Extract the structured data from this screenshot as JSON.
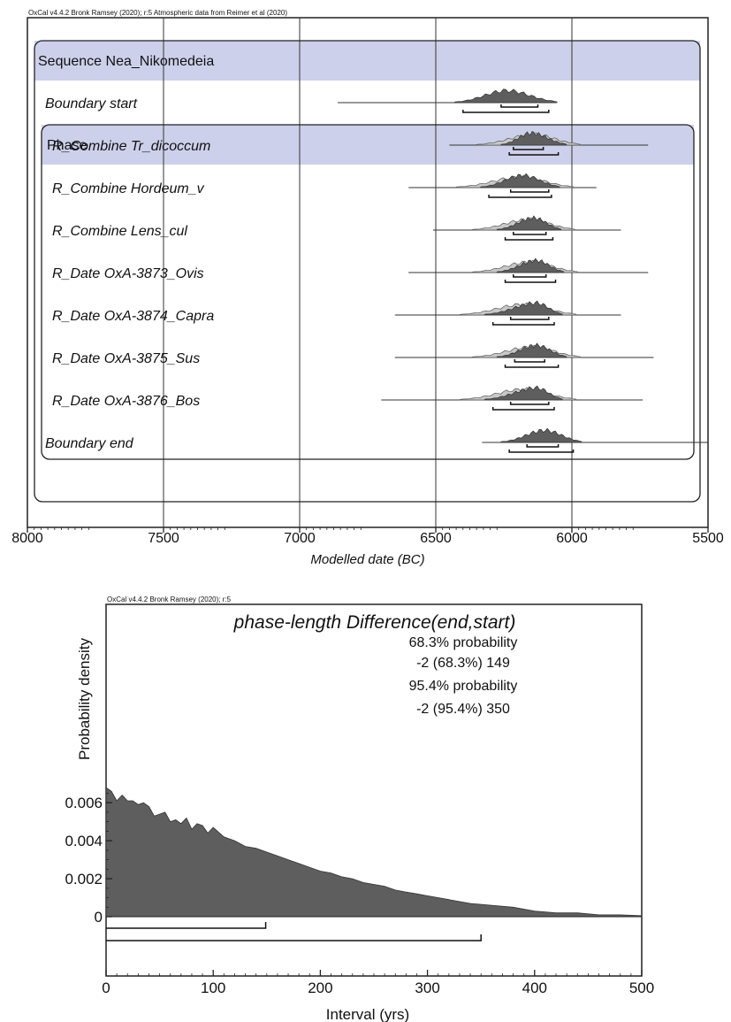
{
  "chart_data": [
    {
      "type": "area",
      "subtitle": "OxCal v4.4.2 Bronk Ramsey (2020); r:5 Atmospheric data from Reimer et al (2020)",
      "xlabel": "Modelled date (BC)",
      "xlim": [
        8000,
        5500
      ],
      "x_ticks": [
        "8000",
        "7500",
        "7000",
        "6500",
        "6000",
        "5500"
      ],
      "sequence_label": "Sequence Nea_Nikomedeia",
      "phase_label": "Phase",
      "rows": [
        {
          "label": "Boundary start",
          "in_phase": false,
          "prior": false,
          "span": [
            6860,
            6060
          ],
          "peak": 6240,
          "r68": [
            6260,
            6125
          ],
          "r95": [
            6400,
            6085
          ]
        },
        {
          "label": "R_Combine Tr_dicoccum",
          "in_phase": true,
          "prior": true,
          "span": [
            6450,
            5720
          ],
          "peak": 6150,
          "r68": [
            6215,
            6105
          ],
          "r95": [
            6230,
            6050
          ]
        },
        {
          "label": "R_Combine Hordeum_v",
          "in_phase": true,
          "prior": true,
          "span": [
            6600,
            5910
          ],
          "peak": 6180,
          "r68": [
            6225,
            6085
          ],
          "r95": [
            6305,
            6075
          ]
        },
        {
          "label": "R_Combine Lens_cul",
          "in_phase": true,
          "prior": true,
          "span": [
            6510,
            5820
          ],
          "peak": 6140,
          "r68": [
            6215,
            6095
          ],
          "r95": [
            6245,
            6070
          ]
        },
        {
          "label": "R_Date OxA-3873_Ovis",
          "in_phase": true,
          "prior": true,
          "span": [
            6600,
            5720
          ],
          "peak": 6130,
          "r68": [
            6215,
            6095
          ],
          "r95": [
            6245,
            6060
          ]
        },
        {
          "label": "R_Date OxA-3874_Capra",
          "in_phase": true,
          "prior": true,
          "span": [
            6650,
            5820
          ],
          "peak": 6130,
          "r68": [
            6225,
            6085
          ],
          "r95": [
            6290,
            6065
          ]
        },
        {
          "label": "R_Date OxA-3875_Sus",
          "in_phase": true,
          "prior": true,
          "span": [
            6650,
            5700
          ],
          "peak": 6130,
          "r68": [
            6210,
            6100
          ],
          "r95": [
            6245,
            6050
          ]
        },
        {
          "label": "R_Date OxA-3876_Bos",
          "in_phase": true,
          "prior": true,
          "span": [
            6700,
            5740
          ],
          "peak": 6130,
          "r68": [
            6225,
            6085
          ],
          "r95": [
            6290,
            6065
          ]
        },
        {
          "label": "Boundary end",
          "in_phase": false,
          "prior": false,
          "span": [
            6330,
            5500
          ],
          "peak": 6100,
          "r68": [
            6165,
            6050
          ],
          "r95": [
            6230,
            5995
          ]
        }
      ]
    },
    {
      "type": "area",
      "subtitle": "OxCal v4.4.2 Bronk Ramsey (2020); r:5",
      "title": "phase-length Difference(end,start)",
      "xlabel": "Interval (yrs)",
      "ylabel": "Probability density",
      "xlim": [
        0,
        500
      ],
      "ylim": [
        0,
        0.0068
      ],
      "x_ticks": [
        "0",
        "100",
        "200",
        "300",
        "400",
        "500"
      ],
      "y_ticks": [
        "0",
        "0.002",
        "0.004",
        "0.006"
      ],
      "stats": [
        "68.3% probability",
        "-2 (68.3%) 149",
        "95.4% probability",
        "-2 (95.4%) 350"
      ],
      "x": [
        0,
        5,
        10,
        15,
        20,
        25,
        30,
        35,
        40,
        45,
        50,
        55,
        60,
        65,
        70,
        75,
        80,
        85,
        90,
        95,
        100,
        110,
        120,
        130,
        140,
        150,
        160,
        170,
        180,
        190,
        200,
        210,
        220,
        230,
        240,
        250,
        260,
        270,
        280,
        290,
        300,
        320,
        340,
        360,
        380,
        400,
        420,
        440,
        460,
        480,
        500
      ],
      "y": [
        0.0068,
        0.0066,
        0.0061,
        0.0064,
        0.0061,
        0.0061,
        0.0059,
        0.006,
        0.0058,
        0.0053,
        0.0054,
        0.0055,
        0.005,
        0.0051,
        0.0049,
        0.0052,
        0.0046,
        0.0049,
        0.0048,
        0.0044,
        0.0047,
        0.0042,
        0.004,
        0.0037,
        0.0036,
        0.0034,
        0.0032,
        0.003,
        0.0028,
        0.0026,
        0.0024,
        0.0023,
        0.0021,
        0.002,
        0.0018,
        0.0017,
        0.0016,
        0.0014,
        0.0013,
        0.0012,
        0.0011,
        0.0009,
        0.0007,
        0.0006,
        0.0005,
        0.0003,
        0.0002,
        0.0002,
        0.0001,
        0.0001,
        5e-05
      ],
      "r68": [
        -2,
        149
      ],
      "r95": [
        -2,
        350
      ]
    }
  ],
  "colors": {
    "posterior": "#5e5e5e",
    "prior": "#c8c8c8",
    "band": "#cdd0ea",
    "line": "#222222"
  }
}
